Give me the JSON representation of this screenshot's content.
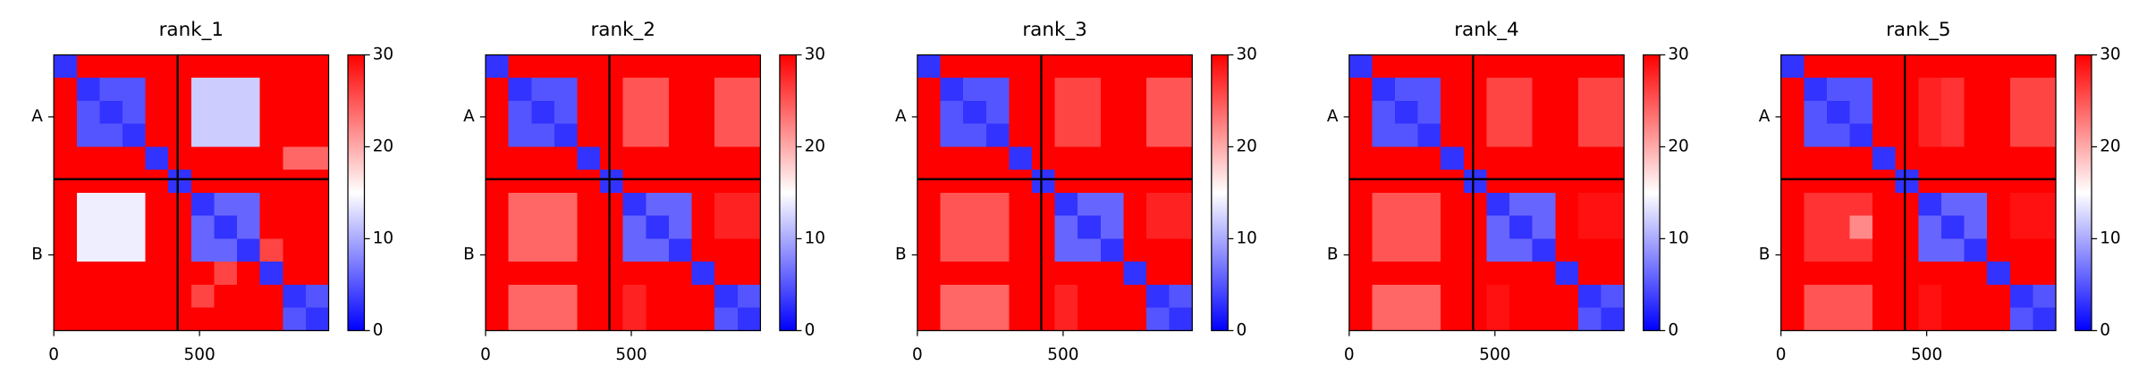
{
  "chart_data": [
    {
      "type": "heatmap",
      "title": "rank_1",
      "xlim": [
        0,
        943
      ],
      "ylim": [
        943,
        0
      ],
      "xticks": [
        0,
        500
      ],
      "yticks": [
        {
          "value": 212,
          "label": "A"
        },
        {
          "value": 684,
          "label": "B"
        }
      ],
      "chain_breaks": [
        425
      ],
      "clim": [
        0,
        30
      ],
      "cticks": [
        0,
        10,
        20,
        30
      ],
      "z": [
        [
          3,
          30,
          30,
          30,
          30,
          30,
          30,
          30,
          30,
          30,
          30,
          30
        ],
        [
          30,
          3,
          5,
          5,
          30,
          30,
          12,
          12,
          12,
          30,
          30,
          30
        ],
        [
          30,
          5,
          3,
          5,
          30,
          30,
          12,
          12,
          12,
          30,
          30,
          30
        ],
        [
          30,
          5,
          5,
          3,
          30,
          30,
          12,
          12,
          12,
          30,
          30,
          30
        ],
        [
          30,
          30,
          30,
          30,
          3,
          30,
          30,
          30,
          30,
          30,
          24,
          24
        ],
        [
          30,
          30,
          30,
          30,
          30,
          3,
          30,
          30,
          30,
          30,
          30,
          30
        ],
        [
          30,
          14,
          14,
          14,
          30,
          30,
          3,
          6,
          6,
          30,
          30,
          30
        ],
        [
          30,
          14,
          14,
          14,
          30,
          30,
          6,
          3,
          6,
          30,
          30,
          30
        ],
        [
          30,
          14,
          14,
          14,
          30,
          30,
          6,
          6,
          3,
          26,
          30,
          30
        ],
        [
          30,
          30,
          30,
          30,
          30,
          30,
          30,
          26,
          30,
          3,
          30,
          30
        ],
        [
          30,
          30,
          30,
          30,
          30,
          30,
          26,
          30,
          30,
          30,
          3,
          5
        ],
        [
          30,
          30,
          30,
          30,
          30,
          30,
          30,
          30,
          30,
          30,
          5,
          3
        ]
      ]
    },
    {
      "type": "heatmap",
      "title": "rank_2",
      "xlim": [
        0,
        943
      ],
      "ylim": [
        943,
        0
      ],
      "xticks": [
        0,
        500
      ],
      "yticks": [
        {
          "value": 212,
          "label": "A"
        },
        {
          "value": 684,
          "label": "B"
        }
      ],
      "chain_breaks": [
        425
      ],
      "clim": [
        0,
        30
      ],
      "cticks": [
        0,
        10,
        20,
        30
      ],
      "z": [
        [
          3,
          30,
          30,
          30,
          30,
          30,
          30,
          30,
          30,
          30,
          30,
          30
        ],
        [
          30,
          3,
          5,
          5,
          30,
          30,
          25,
          25,
          30,
          30,
          25,
          25
        ],
        [
          30,
          5,
          3,
          5,
          30,
          30,
          25,
          25,
          30,
          30,
          25,
          25
        ],
        [
          30,
          5,
          5,
          3,
          30,
          30,
          25,
          25,
          30,
          30,
          25,
          25
        ],
        [
          30,
          30,
          30,
          30,
          3,
          30,
          30,
          30,
          30,
          30,
          30,
          30
        ],
        [
          30,
          30,
          30,
          30,
          30,
          3,
          30,
          30,
          30,
          30,
          30,
          30
        ],
        [
          30,
          24,
          24,
          24,
          30,
          30,
          3,
          6,
          6,
          30,
          28,
          28
        ],
        [
          30,
          24,
          24,
          24,
          30,
          30,
          6,
          3,
          6,
          30,
          28,
          28
        ],
        [
          30,
          24,
          24,
          24,
          30,
          30,
          6,
          6,
          3,
          30,
          30,
          30
        ],
        [
          30,
          30,
          30,
          30,
          30,
          30,
          30,
          30,
          30,
          3,
          30,
          30
        ],
        [
          30,
          24,
          24,
          24,
          30,
          30,
          28,
          30,
          30,
          30,
          3,
          5
        ],
        [
          30,
          24,
          24,
          24,
          30,
          30,
          28,
          30,
          30,
          30,
          5,
          3
        ]
      ]
    },
    {
      "type": "heatmap",
      "title": "rank_3",
      "xlim": [
        0,
        943
      ],
      "ylim": [
        943,
        0
      ],
      "xticks": [
        0,
        500
      ],
      "yticks": [
        {
          "value": 212,
          "label": "A"
        },
        {
          "value": 684,
          "label": "B"
        }
      ],
      "chain_breaks": [
        425
      ],
      "clim": [
        0,
        30
      ],
      "cticks": [
        0,
        10,
        20,
        30
      ],
      "z": [
        [
          3,
          30,
          30,
          30,
          30,
          30,
          30,
          30,
          30,
          30,
          30,
          30
        ],
        [
          30,
          3,
          5,
          5,
          30,
          30,
          26,
          26,
          30,
          30,
          25,
          25
        ],
        [
          30,
          5,
          3,
          5,
          30,
          30,
          26,
          26,
          30,
          30,
          25,
          25
        ],
        [
          30,
          5,
          5,
          3,
          30,
          30,
          26,
          26,
          30,
          30,
          25,
          25
        ],
        [
          30,
          30,
          30,
          30,
          3,
          30,
          30,
          30,
          30,
          30,
          30,
          30
        ],
        [
          30,
          30,
          30,
          30,
          30,
          3,
          30,
          30,
          30,
          30,
          30,
          30
        ],
        [
          30,
          25,
          25,
          25,
          30,
          30,
          3,
          6,
          6,
          30,
          28,
          28
        ],
        [
          30,
          25,
          25,
          25,
          30,
          30,
          6,
          3,
          6,
          30,
          28,
          28
        ],
        [
          30,
          25,
          25,
          25,
          30,
          30,
          6,
          6,
          3,
          30,
          30,
          30
        ],
        [
          30,
          30,
          30,
          30,
          30,
          30,
          30,
          30,
          30,
          3,
          30,
          30
        ],
        [
          30,
          24,
          24,
          24,
          30,
          30,
          28,
          30,
          30,
          30,
          3,
          5
        ],
        [
          30,
          24,
          24,
          24,
          30,
          30,
          28,
          30,
          30,
          30,
          5,
          3
        ]
      ]
    },
    {
      "type": "heatmap",
      "title": "rank_4",
      "xlim": [
        0,
        943
      ],
      "ylim": [
        943,
        0
      ],
      "xticks": [
        0,
        500
      ],
      "yticks": [
        {
          "value": 212,
          "label": "A"
        },
        {
          "value": 684,
          "label": "B"
        }
      ],
      "chain_breaks": [
        425
      ],
      "clim": [
        0,
        30
      ],
      "cticks": [
        0,
        10,
        20,
        30
      ],
      "z": [
        [
          3,
          30,
          30,
          30,
          30,
          30,
          30,
          30,
          30,
          30,
          30,
          30
        ],
        [
          30,
          3,
          5,
          5,
          30,
          30,
          26,
          26,
          30,
          30,
          26,
          26
        ],
        [
          30,
          5,
          3,
          5,
          30,
          30,
          26,
          26,
          30,
          30,
          26,
          26
        ],
        [
          30,
          5,
          5,
          3,
          30,
          30,
          26,
          26,
          30,
          30,
          26,
          26
        ],
        [
          30,
          30,
          30,
          30,
          3,
          30,
          30,
          30,
          30,
          30,
          30,
          30
        ],
        [
          30,
          30,
          30,
          30,
          30,
          3,
          30,
          30,
          30,
          30,
          30,
          30
        ],
        [
          30,
          25,
          25,
          25,
          30,
          30,
          3,
          6,
          6,
          30,
          29,
          29
        ],
        [
          30,
          25,
          25,
          25,
          30,
          30,
          6,
          3,
          6,
          30,
          29,
          29
        ],
        [
          30,
          25,
          25,
          25,
          30,
          30,
          6,
          6,
          3,
          30,
          30,
          30
        ],
        [
          30,
          30,
          30,
          30,
          30,
          30,
          30,
          30,
          30,
          3,
          30,
          30
        ],
        [
          30,
          24,
          24,
          24,
          30,
          30,
          29,
          30,
          30,
          30,
          3,
          5
        ],
        [
          30,
          24,
          24,
          24,
          30,
          30,
          29,
          30,
          30,
          30,
          5,
          3
        ]
      ]
    },
    {
      "type": "heatmap",
      "title": "rank_5",
      "xlim": [
        0,
        943
      ],
      "ylim": [
        943,
        0
      ],
      "xticks": [
        0,
        500
      ],
      "yticks": [
        {
          "value": 212,
          "label": "A"
        },
        {
          "value": 684,
          "label": "B"
        }
      ],
      "chain_breaks": [
        425
      ],
      "clim": [
        0,
        30
      ],
      "cticks": [
        0,
        10,
        20,
        30
      ],
      "z": [
        [
          3,
          30,
          30,
          30,
          30,
          30,
          30,
          30,
          30,
          30,
          30,
          30
        ],
        [
          30,
          3,
          5,
          5,
          30,
          30,
          28,
          27,
          30,
          30,
          26,
          26
        ],
        [
          30,
          5,
          3,
          5,
          30,
          30,
          28,
          27,
          30,
          30,
          26,
          26
        ],
        [
          30,
          5,
          5,
          3,
          30,
          30,
          28,
          27,
          30,
          30,
          26,
          26
        ],
        [
          30,
          30,
          30,
          30,
          3,
          30,
          30,
          30,
          30,
          30,
          30,
          30
        ],
        [
          30,
          30,
          30,
          30,
          30,
          3,
          30,
          30,
          30,
          30,
          30,
          30
        ],
        [
          30,
          27,
          27,
          27,
          30,
          30,
          3,
          6,
          6,
          30,
          29,
          29
        ],
        [
          30,
          27,
          27,
          22,
          30,
          30,
          6,
          3,
          6,
          30,
          29,
          29
        ],
        [
          30,
          27,
          27,
          27,
          30,
          30,
          6,
          6,
          3,
          30,
          30,
          30
        ],
        [
          30,
          30,
          30,
          30,
          30,
          30,
          30,
          30,
          30,
          3,
          30,
          30
        ],
        [
          30,
          25,
          25,
          25,
          30,
          30,
          29,
          30,
          30,
          30,
          3,
          5
        ],
        [
          30,
          25,
          25,
          25,
          30,
          30,
          29,
          30,
          30,
          30,
          5,
          3
        ]
      ]
    }
  ]
}
